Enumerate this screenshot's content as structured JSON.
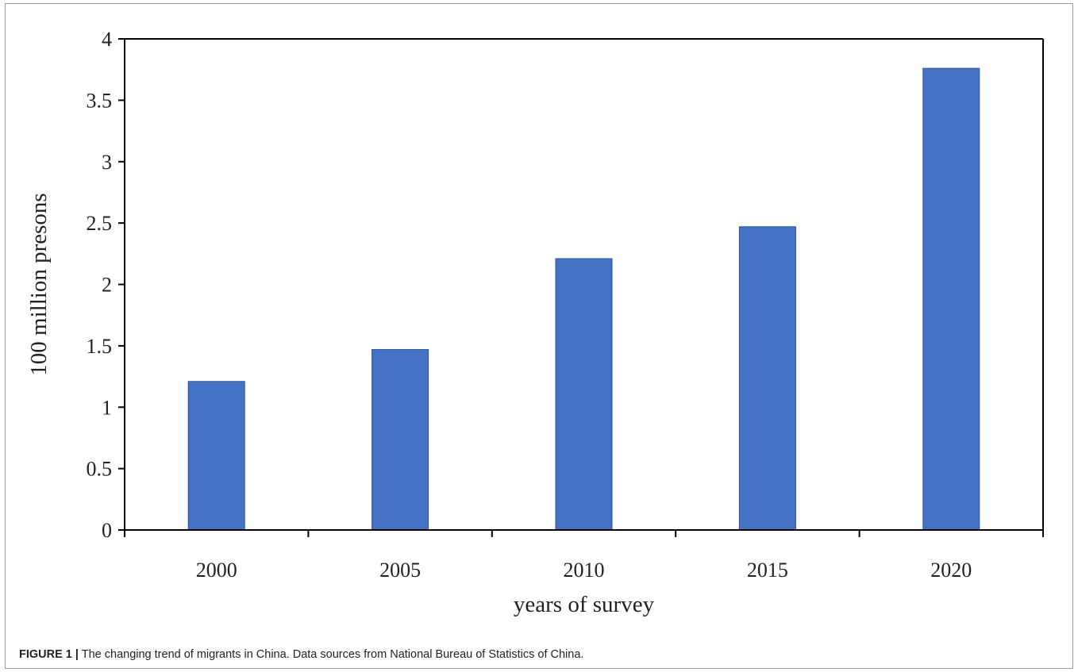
{
  "caption": {
    "label": "FIGURE 1 |",
    "text": "The changing trend of migrants in China. Data sources from National Bureau of Statistics of China."
  },
  "chart_data": {
    "type": "bar",
    "categories": [
      "2000",
      "2005",
      "2010",
      "2015",
      "2020"
    ],
    "values": [
      1.21,
      1.47,
      2.21,
      2.47,
      3.76
    ],
    "xlabel": "years of survey",
    "ylabel": "100 million presons",
    "ylim": [
      0,
      4
    ],
    "yticks": [
      "0",
      "0.5",
      "1",
      "1.5",
      "2",
      "2.5",
      "3",
      "3.5",
      "4"
    ],
    "grid": false,
    "bar_color": "#4472c4",
    "bar_edge_color": "#2f528f"
  }
}
